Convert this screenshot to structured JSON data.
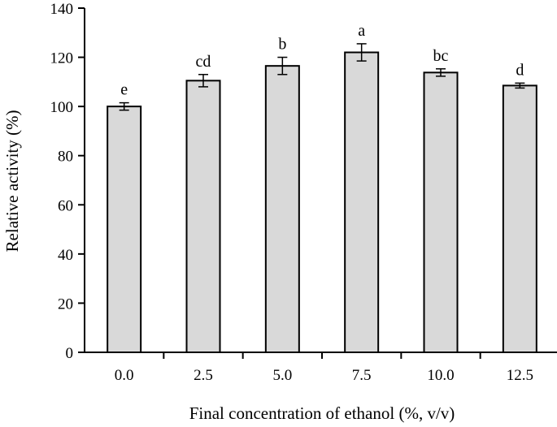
{
  "chart_data": {
    "type": "bar",
    "title": "",
    "xlabel": "Final concentration of ethanol (%, v/v)",
    "ylabel": "Relative activity (%)",
    "categories": [
      "0.0",
      "2.5",
      "5.0",
      "7.5",
      "10.0",
      "12.5"
    ],
    "values": [
      100,
      110.5,
      116.5,
      122,
      113.8,
      108.5
    ],
    "errors": [
      1.5,
      2.5,
      3.5,
      3.5,
      1.5,
      1.0
    ],
    "significance": [
      "e",
      "cd",
      "b",
      "a",
      "bc",
      "d"
    ],
    "ylim": [
      0,
      140
    ],
    "yticks": [
      0,
      20,
      40,
      60,
      80,
      100,
      120,
      140
    ],
    "grid": false,
    "bar_color": "#d9d9d9",
    "edge_color": "#000000"
  }
}
